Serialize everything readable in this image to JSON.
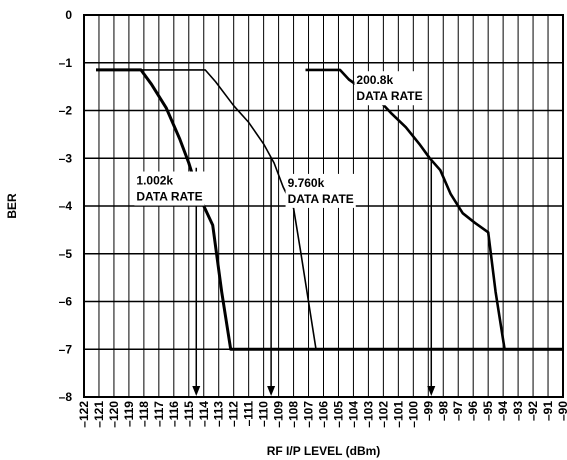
{
  "chart_data": {
    "type": "line",
    "title": "",
    "xlabel": "RF I/P LEVEL (dBm)",
    "ylabel": "BER",
    "xlim": [
      -122,
      -90
    ],
    "ylim": [
      -8,
      0
    ],
    "grid": true,
    "yticks": [
      0,
      -1,
      -2,
      -3,
      -4,
      -5,
      -6,
      -7,
      -8
    ],
    "yticklabels": [
      "0",
      "–1",
      "–2",
      "–3",
      "–4",
      "–5",
      "–6",
      "–7",
      "–8"
    ],
    "xticks": [
      -122,
      -121,
      -120,
      -119,
      -118,
      -117,
      -116,
      -115,
      -114,
      -113,
      -112,
      -111,
      -110,
      -109,
      -108,
      -107,
      -106,
      -105,
      -104,
      -103,
      -102,
      -101,
      -100,
      -99,
      -98,
      -97,
      -96,
      -95,
      -94,
      -93,
      -92,
      -91,
      -90
    ],
    "xticklabels": [
      "–122",
      "–121",
      "–120",
      "–119",
      "–118",
      "–117",
      "–116",
      "–115",
      "–114",
      "–113",
      "–112",
      "–111",
      "–110",
      "–109",
      "–108",
      "–107",
      "–106",
      "–105",
      "–104",
      "–103",
      "–102",
      "–101",
      "–100",
      "–99",
      "–98",
      "–97",
      "–96",
      "–95",
      "–94",
      "–93",
      "–92",
      "–91",
      "–90"
    ],
    "series": [
      {
        "name": "1.002k DATA RATE",
        "x": [
          -121.2,
          -118.2,
          -117.5,
          -116.5,
          -115.6,
          -115.0,
          -114.5,
          -114.0,
          -113.4,
          -112.8,
          -112.2,
          -90
        ],
        "y": [
          -1.15,
          -1.15,
          -1.45,
          -1.95,
          -2.6,
          -3.1,
          -3.6,
          -4.0,
          -4.4,
          -5.8,
          -7.0,
          -7.0
        ]
      },
      {
        "name": "9.760k DATA RATE",
        "x": [
          -121.2,
          -113.9,
          -113.2,
          -112.0,
          -111.0,
          -110.0,
          -109.3,
          -108.7,
          -108.0,
          -107.5,
          -107.0,
          -106.5
        ],
        "y": [
          -1.15,
          -1.15,
          -1.4,
          -1.9,
          -2.25,
          -2.7,
          -3.1,
          -3.6,
          -4.05,
          -5.0,
          -6.0,
          -7.0
        ]
      },
      {
        "name": "200.8k DATA RATE",
        "x": [
          -107.2,
          -104.9,
          -104.3,
          -103.4,
          -102.4,
          -101.5,
          -100.5,
          -99.6,
          -98.9,
          -98.2,
          -97.5,
          -96.7,
          -95.9,
          -95.0,
          -94.5,
          -93.9,
          -90
        ],
        "y": [
          -1.15,
          -1.15,
          -1.35,
          -1.55,
          -1.75,
          -2.05,
          -2.35,
          -2.7,
          -3.0,
          -3.25,
          -3.75,
          -4.15,
          -4.35,
          -4.55,
          -5.8,
          -7.0,
          -7.0
        ]
      }
    ],
    "annotations": [
      {
        "lines": [
          "200.8k",
          "DATA RATE"
        ],
        "x": -103.8,
        "y": -1.45
      },
      {
        "lines": [
          "9.760k",
          "DATA RATE"
        ],
        "x": -108.4,
        "y": -3.6
      },
      {
        "lines": [
          "1.002k",
          "DATA RATE"
        ],
        "x": -118.5,
        "y": -3.55
      }
    ],
    "arrows": [
      {
        "x": -114.5,
        "from_y": -3.2,
        "to_y": -8.0
      },
      {
        "x": -109.5,
        "from_y": -3.0,
        "to_y": -8.0
      },
      {
        "x": -98.8,
        "from_y": -3.0,
        "to_y": -8.0
      }
    ]
  }
}
